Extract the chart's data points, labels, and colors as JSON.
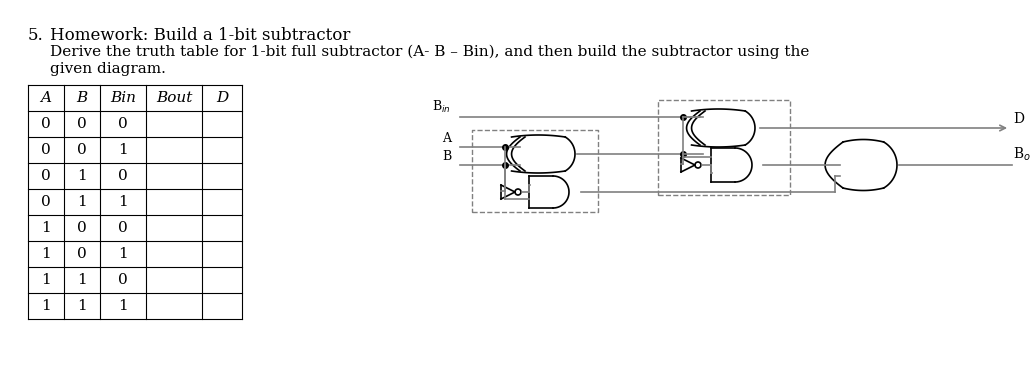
{
  "title_number": "5.",
  "title_text": "Homework: Build a 1-bit subtractor",
  "subtitle_text": "Derive the truth table for 1-bit full subtractor (A- B – Bin), and then build the subtractor using the",
  "subtitle_text2": "given diagram.",
  "table_headers": [
    "A",
    "B",
    "Bin",
    "Bout",
    "D"
  ],
  "table_data": [
    [
      "0",
      "0",
      "0",
      "",
      ""
    ],
    [
      "0",
      "0",
      "1",
      "",
      ""
    ],
    [
      "0",
      "1",
      "0",
      "",
      ""
    ],
    [
      "0",
      "1",
      "1",
      "",
      ""
    ],
    [
      "1",
      "0",
      "0",
      "",
      ""
    ],
    [
      "1",
      "0",
      "1",
      "",
      ""
    ],
    [
      "1",
      "1",
      "0",
      "",
      ""
    ],
    [
      "1",
      "1",
      "1",
      "",
      ""
    ]
  ],
  "bg_color": "#ffffff",
  "text_color": "#000000",
  "line_color": "#808080",
  "gate_color": "#000000",
  "dashed_color": "#808080"
}
